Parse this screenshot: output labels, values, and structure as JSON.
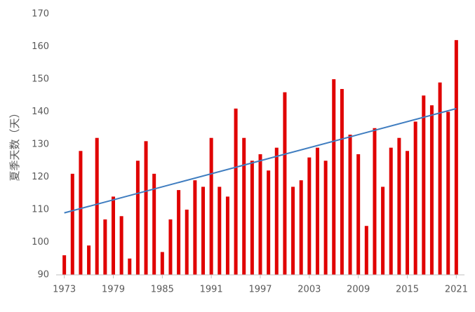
{
  "chart_data": {
    "type": "bar",
    "ylabel": "夏季天数（天）",
    "x": [
      1973,
      1974,
      1975,
      1976,
      1977,
      1978,
      1979,
      1980,
      1981,
      1982,
      1983,
      1984,
      1985,
      1986,
      1987,
      1988,
      1989,
      1990,
      1991,
      1992,
      1993,
      1994,
      1995,
      1996,
      1997,
      1998,
      1999,
      2000,
      2001,
      2002,
      2003,
      2004,
      2005,
      2006,
      2007,
      2008,
      2009,
      2010,
      2011,
      2012,
      2013,
      2014,
      2015,
      2016,
      2017,
      2018,
      2019,
      2020,
      2021
    ],
    "values": [
      96,
      121,
      128,
      99,
      132,
      107,
      114,
      108,
      95,
      125,
      131,
      121,
      97,
      107,
      116,
      110,
      119,
      117,
      132,
      117,
      114,
      141,
      132,
      125,
      127,
      122,
      129,
      146,
      117,
      119,
      126,
      129,
      125,
      150,
      147,
      133,
      127,
      105,
      135,
      117,
      129,
      132,
      128,
      137,
      145,
      142,
      149,
      140,
      162
    ],
    "color": "#e00000",
    "trend": {
      "x": [
        1973,
        2021
      ],
      "values": [
        109,
        141
      ],
      "color": "#3f7dc0"
    },
    "xlim": [
      1972,
      2022
    ],
    "xticks": [
      1973,
      1979,
      1985,
      1991,
      1997,
      2003,
      2009,
      2015,
      2021
    ],
    "ylim": [
      90,
      170
    ],
    "yticks": [
      90,
      100,
      110,
      120,
      130,
      140,
      150,
      160,
      170
    ],
    "grid": false
  }
}
